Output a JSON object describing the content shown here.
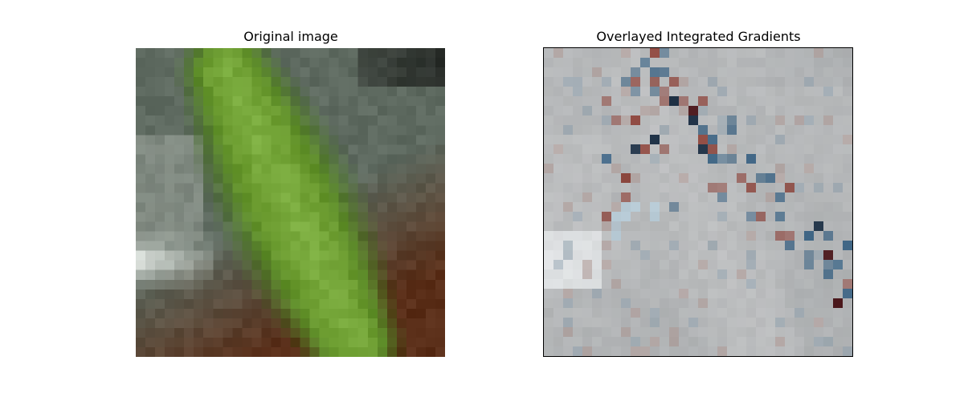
{
  "figure": {
    "left_title": "Original image",
    "right_title": "Overlayed Integrated Gradients"
  },
  "left_image": {
    "subject": "green frog on a brown log",
    "grid_size": 32,
    "colors": {
      "frog_green": "#6a9a2e",
      "frog_light": "#86b84a",
      "frog_dark": "#3c6a1a",
      "background_gray": "#5e6a60",
      "log_brown": "#5a2e18",
      "highlight_white": "#eef2ee"
    }
  },
  "right_image": {
    "grid_size": 32,
    "colors": {
      "base_gray": "#a8abad",
      "light_gray": "#c6c7c8",
      "positive_red": "#8a3a30",
      "negative_blue": "#2e5a7e",
      "dark_red": "#4a1418",
      "dark_blue": "#14283e",
      "pale_blue": "#b8d6e8"
    }
  }
}
